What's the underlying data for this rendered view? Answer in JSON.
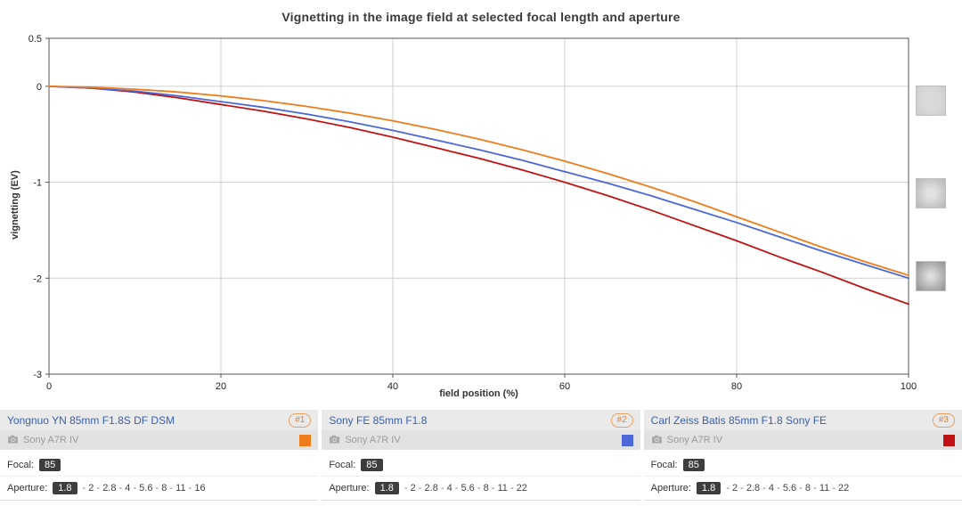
{
  "title": "Vignetting in the image field at selected focal length and aperture",
  "chart_data": {
    "type": "line",
    "title": "Vignetting in the image field at selected focal length and aperture",
    "xlabel": "field position (%)",
    "ylabel": "vignetting (EV)",
    "xlim": [
      0,
      100
    ],
    "ylim": [
      -3,
      0.5
    ],
    "xticks": [
      0,
      20,
      40,
      60,
      80,
      100
    ],
    "yticks": [
      0.5,
      0,
      -1,
      -2,
      -3
    ],
    "grid": true,
    "legend_position": "bottom-panel",
    "x": [
      0,
      5,
      10,
      15,
      20,
      25,
      30,
      35,
      40,
      45,
      50,
      55,
      60,
      65,
      70,
      75,
      80,
      85,
      90,
      95,
      100
    ],
    "series": [
      {
        "name": "Yongnuo YN 85mm F1.8S DF DSM",
        "color": "#ef7c1a",
        "values": [
          0,
          -0.01,
          -0.03,
          -0.06,
          -0.1,
          -0.15,
          -0.21,
          -0.28,
          -0.36,
          -0.45,
          -0.55,
          -0.66,
          -0.78,
          -0.91,
          -1.05,
          -1.2,
          -1.36,
          -1.52,
          -1.68,
          -1.83,
          -1.97
        ]
      },
      {
        "name": "Sony FE 85mm F1.8",
        "color": "#4a68d8",
        "values": [
          0,
          -0.02,
          -0.05,
          -0.1,
          -0.16,
          -0.22,
          -0.29,
          -0.37,
          -0.46,
          -0.56,
          -0.66,
          -0.77,
          -0.89,
          -1.01,
          -1.14,
          -1.28,
          -1.42,
          -1.57,
          -1.72,
          -1.86,
          -2.0
        ]
      },
      {
        "name": "Carl Zeiss Batis 85mm F1.8 Sony FE",
        "color": "#c01212",
        "values": [
          0,
          -0.02,
          -0.06,
          -0.12,
          -0.19,
          -0.26,
          -0.34,
          -0.43,
          -0.53,
          -0.64,
          -0.75,
          -0.87,
          -1.0,
          -1.14,
          -1.29,
          -1.45,
          -1.61,
          -1.78,
          -1.94,
          -2.11,
          -2.27
        ]
      }
    ]
  },
  "lenses": [
    {
      "name": "Yongnuo YN 85mm F1.8S DF DSM",
      "rank": "#1",
      "camera": "Sony A7R IV",
      "color": "#ef7c1a",
      "focal_label": "Focal:",
      "focal": "85",
      "aperture_label": "Aperture:",
      "aperture_selected": "1.8",
      "apertures": [
        "2",
        "2.8",
        "4",
        "5.6",
        "8",
        "11",
        "16"
      ]
    },
    {
      "name": "Sony FE 85mm F1.8",
      "rank": "#2",
      "camera": "Sony A7R IV",
      "color": "#4a68d8",
      "focal_label": "Focal:",
      "focal": "85",
      "aperture_label": "Aperture:",
      "aperture_selected": "1.8",
      "apertures": [
        "2",
        "2.8",
        "4",
        "5.6",
        "8",
        "11",
        "22"
      ]
    },
    {
      "name": "Carl Zeiss Batis 85mm F1.8 Sony FE",
      "rank": "#3",
      "camera": "Sony A7R IV",
      "color": "#c01212",
      "focal_label": "Focal:",
      "focal": "85",
      "aperture_label": "Aperture:",
      "aperture_selected": "1.8",
      "apertures": [
        "2",
        "2.8",
        "4",
        "5.6",
        "8",
        "11",
        "22"
      ]
    }
  ]
}
